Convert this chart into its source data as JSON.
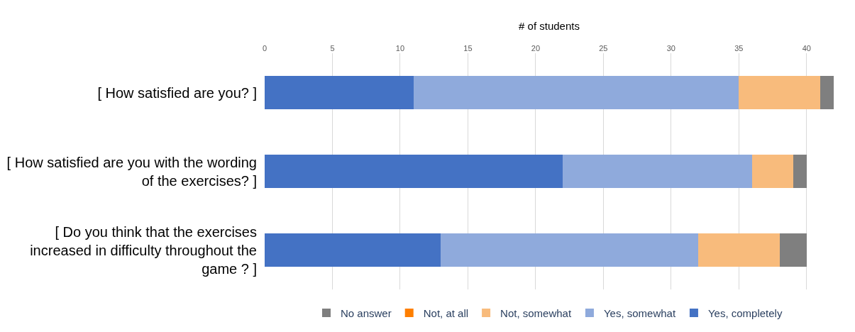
{
  "chart_data": {
    "type": "bar",
    "orientation": "horizontal",
    "stacked": true,
    "xlabel": "# of students",
    "categories": [
      "[ How satisfied are you? ]",
      "[ How satisfied are you with the wording of the exercises? ]",
      "[ Do you think that the exercises increased in difficulty throughout the game ? ]"
    ],
    "series": [
      {
        "name": "Yes, completely",
        "color": "#4472c4",
        "values": [
          11,
          22,
          13
        ]
      },
      {
        "name": "Yes, somewhat",
        "color": "#8faadc",
        "values": [
          24,
          14,
          19
        ]
      },
      {
        "name": "Not, somewhat",
        "color": "#f8bb7c",
        "values": [
          6,
          3,
          6
        ]
      },
      {
        "name": "Not, at all",
        "color": "#fe7f00",
        "values": [
          0,
          0,
          0
        ]
      },
      {
        "name": "No answer",
        "color": "#7f7f7f",
        "values": [
          1,
          1,
          2
        ]
      }
    ],
    "xlim": [
      0,
      42
    ],
    "xticks": [
      0,
      5,
      10,
      15,
      20,
      25,
      30,
      35,
      40
    ],
    "grid": "x",
    "legend": "bottom"
  }
}
